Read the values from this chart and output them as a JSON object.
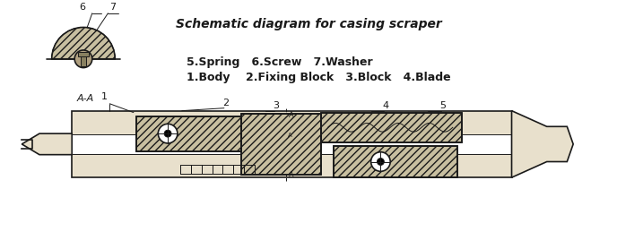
{
  "background_color": "#ffffff",
  "title": "Schematic diagram for casing scraper",
  "legend_line1": "1.Body    2.Fixing Block   3.Block   4.Blade",
  "legend_line2": "5.Spring   6.Screw   7.Washer",
  "label_1": "1",
  "label_2": "2",
  "label_3": "3",
  "label_4": "4",
  "label_5": "5",
  "label_6": "6",
  "label_7": "7",
  "aa_label": "A-A",
  "line_color": "#1a1a1a",
  "body_fill": "#e8e0cc",
  "hatch_fill": "#c8bfa0",
  "fill_light": "#d4c9a8",
  "fill_mid": "#b0a080",
  "fill_dark": "#888060"
}
